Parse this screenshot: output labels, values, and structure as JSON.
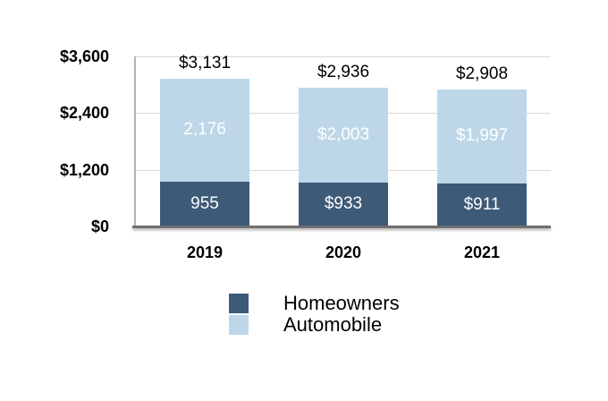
{
  "chart_data": {
    "type": "bar",
    "stacked": true,
    "title": "",
    "xlabel": "",
    "ylabel": "",
    "categories": [
      "2019",
      "2020",
      "2021"
    ],
    "series": [
      {
        "name": "Homeowners",
        "color": "#3d5a78",
        "values": [
          955,
          933,
          911
        ],
        "labels": [
          "955",
          "$933",
          "$911"
        ]
      },
      {
        "name": "Automobile",
        "color": "#bdd7e9",
        "values": [
          2176,
          2003,
          1997
        ],
        "labels": [
          "2,176",
          "$2,003",
          "$1,997"
        ]
      }
    ],
    "totals": [
      3131,
      2936,
      2908
    ],
    "total_labels": [
      "$3,131",
      "$2,936",
      "$2,908"
    ],
    "y_axis": {
      "max": 3600,
      "ticks": [
        {
          "value": 0,
          "label": "$0"
        },
        {
          "value": 1200,
          "label": "$1,200"
        },
        {
          "value": 2400,
          "label": "$2,400"
        },
        {
          "value": 3600,
          "label": "$3,600"
        }
      ]
    },
    "grid": true,
    "legend_position": "bottom",
    "legend": [
      {
        "label": "Homeowners",
        "color": "#3d5a78"
      },
      {
        "label": "Automobile",
        "color": "#bdd7e9"
      }
    ]
  },
  "colors": {
    "homeowners": "#3d5a78",
    "automobile": "#bdd7e9",
    "gridline": "#d9d9d9",
    "y_axis_line": "#b3b3b3",
    "baseline": "#6f6f6f",
    "text": "#000000",
    "bar_value_text": "#ffffff"
  }
}
